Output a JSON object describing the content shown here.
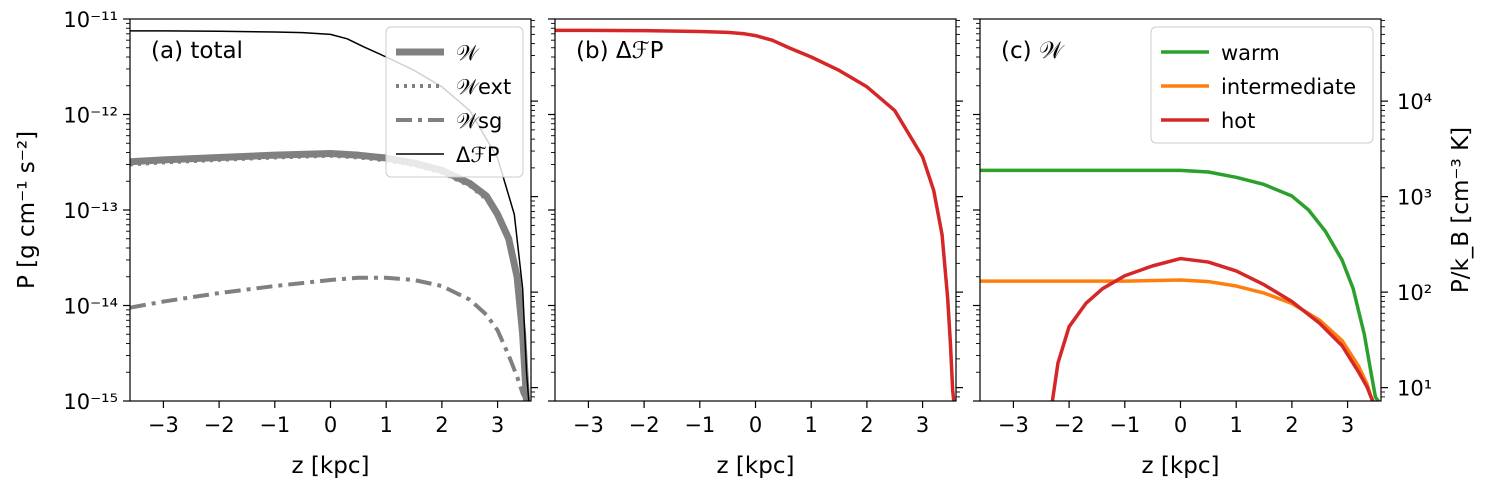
{
  "chart_data": [
    {
      "type": "line",
      "panel_label": "(a) total",
      "xlabel": "z [kpc]",
      "ylabel": "P [g cm⁻¹ s⁻²]",
      "xlim": [
        -3.6,
        3.6
      ],
      "ylim": [
        1e-15,
        1e-11
      ],
      "yscale": "log",
      "xticks": [
        -3,
        -2,
        -1,
        0,
        1,
        2,
        3
      ],
      "xtick_labels": [
        "−3",
        "−2",
        "−1",
        "0",
        "1",
        "2",
        "3"
      ],
      "yticks": [
        1e-15,
        1e-14,
        1e-13,
        1e-12,
        1e-11
      ],
      "ytick_labels": [
        "10⁻¹⁵",
        "10⁻¹⁴",
        "10⁻¹³",
        "10⁻¹²",
        "10⁻¹¹"
      ],
      "legend_position": "top-right",
      "series": [
        {
          "name": "𝒲",
          "color": "#808080",
          "style": "thick",
          "x": [
            -3.6,
            -3,
            -2,
            -1,
            0,
            0.5,
            1,
            1.5,
            2,
            2.5,
            2.8,
            3.0,
            3.2,
            3.35,
            3.45,
            3.52
          ],
          "y": [
            3.2e-13,
            3.35e-13,
            3.55e-13,
            3.75e-13,
            3.9e-13,
            3.75e-13,
            3.5e-13,
            3.1e-13,
            2.6e-13,
            1.9e-13,
            1.4e-13,
            9e-14,
            5e-14,
            2e-14,
            5e-15,
            1e-15
          ]
        },
        {
          "name": "𝒲ext",
          "color": "#808080",
          "style": "dotted",
          "x": [
            -3.6,
            -3,
            -2,
            -1,
            0,
            0.5,
            1,
            1.5,
            2,
            2.5,
            2.8,
            3.0,
            3.2,
            3.35,
            3.45,
            3.52
          ],
          "y": [
            3e-13,
            3.15e-13,
            3.35e-13,
            3.55e-13,
            3.7e-13,
            3.55e-13,
            3.3e-13,
            2.95e-13,
            2.45e-13,
            1.8e-13,
            1.3e-13,
            8.5e-14,
            4.7e-14,
            1.9e-14,
            4.5e-15,
            1e-15
          ]
        },
        {
          "name": "𝒲sg",
          "color": "#808080",
          "style": "dashdot",
          "x": [
            -3.6,
            -3,
            -2,
            -1,
            0,
            0.5,
            1,
            1.5,
            2,
            2.5,
            2.8,
            3.0,
            3.2,
            3.35,
            3.45,
            3.52
          ],
          "y": [
            9.5e-15,
            1.1e-14,
            1.35e-14,
            1.6e-14,
            1.85e-14,
            1.95e-14,
            1.95e-14,
            1.85e-14,
            1.6e-14,
            1.15e-14,
            8e-15,
            5.5e-15,
            3e-15,
            1.8e-15,
            1.2e-15,
            1e-15
          ]
        },
        {
          "name": "ΔℱP",
          "color": "#000000",
          "style": "thin",
          "x": [
            -3.6,
            -3,
            -2,
            -1,
            -0.5,
            0,
            0.3,
            0.6,
            1,
            1.5,
            2,
            2.5,
            3.0,
            3.3,
            3.45,
            3.52,
            3.56
          ],
          "y": [
            7.5e-12,
            7.5e-12,
            7.45e-12,
            7.3e-12,
            7.2e-12,
            6.9e-12,
            6.2e-12,
            5.1e-12,
            4e-12,
            2.9e-12,
            1.95e-12,
            1.1e-12,
            3.5e-13,
            9e-14,
            1.5e-14,
            2e-15,
            1e-15
          ]
        }
      ]
    },
    {
      "type": "line",
      "panel_label": "(b) ΔℱP",
      "xlabel": "z [kpc]",
      "xlim": [
        -3.6,
        3.6
      ],
      "ylim": [
        1e-15,
        1e-11
      ],
      "yscale": "log",
      "xticks": [
        -3,
        -2,
        -1,
        0,
        1,
        2,
        3
      ],
      "xtick_labels": [
        "−3",
        "−2",
        "−1",
        "0",
        "1",
        "2",
        "3"
      ],
      "series": [
        {
          "color": "#d62728",
          "x": [
            -3.6,
            -3,
            -2,
            -1,
            -0.5,
            -0.2,
            0,
            0.3,
            0.6,
            1,
            1.5,
            2,
            2.5,
            3.0,
            3.2,
            3.35,
            3.45,
            3.5,
            3.54,
            3.56
          ],
          "y": [
            7.6e-12,
            7.6e-12,
            7.55e-12,
            7.4e-12,
            7.25e-12,
            7e-12,
            6.7e-12,
            6e-12,
            5e-12,
            4e-12,
            2.9e-12,
            1.95e-12,
            1.1e-12,
            3.6e-13,
            1.6e-13,
            5.5e-14,
            1.2e-14,
            4e-15,
            1.3e-15,
            1e-15
          ]
        }
      ]
    },
    {
      "type": "line",
      "panel_label": "(c) 𝒲",
      "xlabel": "z [kpc]",
      "ylabel_right": "P/k_B [cm⁻³ K]",
      "xlim": [
        -3.6,
        3.6
      ],
      "ylim": [
        1e-15,
        1e-11
      ],
      "yscale": "log",
      "xticks": [
        -3,
        -2,
        -1,
        0,
        1,
        2,
        3
      ],
      "xtick_labels": [
        "−3",
        "−2",
        "−1",
        "0",
        "1",
        "2",
        "3"
      ],
      "right_yticks": [
        10,
        100,
        1000,
        10000
      ],
      "right_ytick_labels": [
        "10¹",
        "10²",
        "10³",
        "10⁴"
      ],
      "legend_position": "top-right",
      "series": [
        {
          "name": "warm",
          "color": "#2ca02c",
          "x": [
            -3.6,
            -3,
            -2,
            -1,
            0,
            0.5,
            1,
            1.5,
            2,
            2.3,
            2.6,
            2.9,
            3.1,
            3.3,
            3.42,
            3.5,
            3.55
          ],
          "y": [
            2.6e-13,
            2.6e-13,
            2.6e-13,
            2.6e-13,
            2.6e-13,
            2.5e-13,
            2.2e-13,
            1.85e-13,
            1.4e-13,
            1e-13,
            6e-14,
            3e-14,
            1.5e-14,
            5e-15,
            2e-15,
            1.1e-15,
            1e-15
          ]
        },
        {
          "name": "intermediate",
          "color": "#ff7f0e",
          "x": [
            -3.6,
            -3,
            -2,
            -1,
            0,
            0.5,
            1,
            1.5,
            2,
            2.5,
            2.9,
            3.2,
            3.35,
            3.42,
            3.46
          ],
          "y": [
            1.8e-14,
            1.8e-14,
            1.8e-14,
            1.8e-14,
            1.85e-14,
            1.78e-14,
            1.6e-14,
            1.35e-14,
            1.05e-14,
            7e-15,
            4.3e-15,
            2.3e-15,
            1.5e-15,
            1.1e-15,
            1e-15
          ]
        },
        {
          "name": "hot",
          "color": "#d62728",
          "x": [
            -2.3,
            -2.2,
            -2.0,
            -1.7,
            -1.4,
            -1.0,
            -0.5,
            0,
            0.5,
            1,
            1.5,
            2,
            2.5,
            2.9,
            3.2,
            3.35,
            3.45
          ],
          "y": [
            1e-15,
            2.5e-15,
            6e-15,
            1.05e-14,
            1.5e-14,
            2.05e-14,
            2.6e-14,
            3.1e-14,
            2.85e-14,
            2.3e-14,
            1.65e-14,
            1.1e-14,
            6.5e-15,
            3.8e-15,
            2e-15,
            1.4e-15,
            1e-15
          ]
        }
      ]
    }
  ]
}
